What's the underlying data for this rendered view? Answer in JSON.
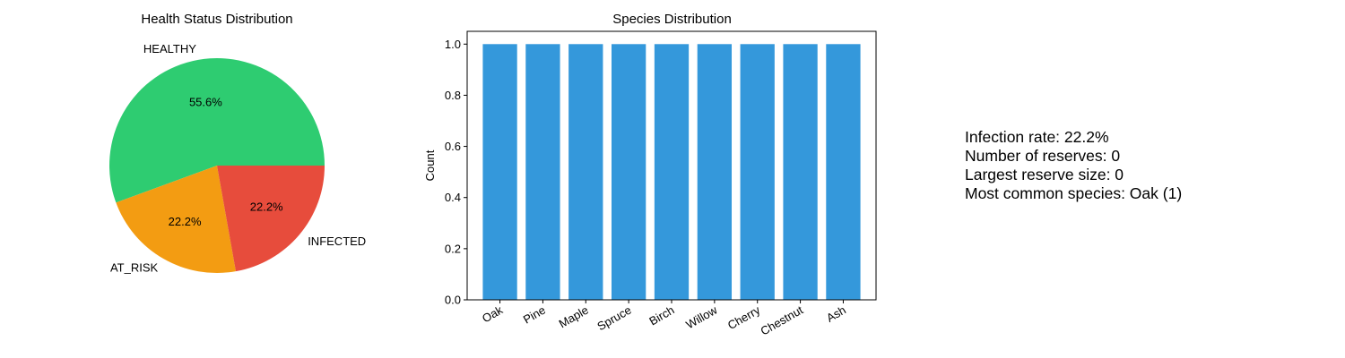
{
  "chart_data": [
    {
      "type": "pie",
      "title": "Health Status Distribution",
      "labels": [
        "HEALTHY",
        "AT_RISK",
        "INFECTED"
      ],
      "values": [
        55.6,
        22.2,
        22.2
      ],
      "value_labels": [
        "55.6%",
        "22.2%",
        "22.2%"
      ],
      "colors": [
        "#2ecc71",
        "#f39c12",
        "#e74c3c"
      ]
    },
    {
      "type": "bar",
      "title": "Species Distribution",
      "categories": [
        "Oak",
        "Pine",
        "Maple",
        "Spruce",
        "Birch",
        "Willow",
        "Cherry",
        "Chestnut",
        "Ash"
      ],
      "values": [
        1,
        1,
        1,
        1,
        1,
        1,
        1,
        1,
        1
      ],
      "xlabel": "",
      "ylabel": "Count",
      "ylim": [
        0,
        1.05
      ],
      "yticks": [
        "0.0",
        "0.2",
        "0.4",
        "0.6",
        "0.8",
        "1.0"
      ],
      "color": "#3498db",
      "grid": false
    }
  ],
  "stats": {
    "infection_rate": "Infection rate: 22.2%",
    "reserves": "Number of reserves: 0",
    "largest_reserve": "Largest reserve size: 0",
    "common_species": "Most common species: Oak (1)"
  }
}
